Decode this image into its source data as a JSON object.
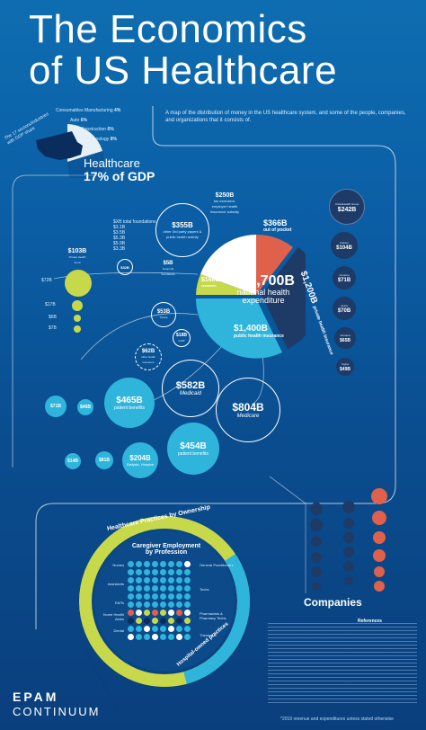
{
  "header": {
    "title_line1": "The Economics",
    "title_line2": "of US Healthcare",
    "subtitle": "A map of the distribution of money in the US healthcare system, and some of the people, companies, and organizations that it consists of."
  },
  "gdp": {
    "title": "Healthcare",
    "percent": "17% of GDP",
    "pie_slices": [
      {
        "label": "Consumables Manufacturing",
        "value": "4%"
      },
      {
        "label": "Auto",
        "value": "6%"
      },
      {
        "label": "Construction",
        "value": "6%"
      },
      {
        "label": "Technology",
        "value": "8%"
      }
    ],
    "curve_label": "The 17 sectors/industries with GDP share"
  },
  "center": {
    "total": "~$3,700B",
    "total_label1": "national health",
    "total_label2": "expenditure",
    "slices": [
      {
        "value": "$605B",
        "label": "other"
      },
      {
        "value": "$366B",
        "label": "out of pocket"
      },
      {
        "value": "$1,200B",
        "label": "private health insurance"
      },
      {
        "value": "$1,400B",
        "label": "public health insurance"
      },
      {
        "value": "$168B",
        "label": "research"
      }
    ],
    "colors": {
      "other": "#ffffff",
      "oop": "#e0614b",
      "private": "#1d3b66",
      "public": "#2fb4dc",
      "research": "#c7d94a"
    }
  },
  "bubbles": {
    "b250": {
      "value": "$250B",
      "label": "tax exclusion, employer health insurance subsidy"
    },
    "b355": {
      "value": "$355B",
      "label": "other 3rd party payers & public health activity"
    },
    "b5": {
      "value": "$5B",
      "label": "Nonprofit foundations"
    },
    "b103": {
      "value": "$103B",
      "label": "Private Health Fund"
    },
    "b53": {
      "value": "$53B",
      "label": "Tricare"
    },
    "b18": {
      "value": "$18B",
      "label": "CHIP"
    },
    "b62": {
      "value": "$62B",
      "label": "other health insurance"
    },
    "b582": {
      "value": "$582B",
      "label": "Medicaid"
    },
    "b804": {
      "value": "$804B",
      "label": "Medicare"
    },
    "b465": {
      "value": "$465B",
      "label": "patient benefits"
    },
    "b454": {
      "value": "$454B",
      "label": "patient benefits"
    },
    "b204": {
      "value": "$204B",
      "label": "Dialysis, Hospice"
    },
    "b71": {
      "value": "$71B",
      "label": ""
    },
    "b46": {
      "value": "$46B",
      "label": ""
    },
    "b14": {
      "value": "$14B",
      "label": ""
    },
    "b81": {
      "value": "$81B",
      "label": ""
    },
    "b72": {
      "value": "$72B",
      "label": ""
    },
    "b17": {
      "value": "$17B",
      "label": ""
    },
    "b6": {
      "value": "$6B",
      "label": ""
    },
    "b7": {
      "value": "$7B",
      "label": ""
    },
    "b32": {
      "value": "$32B",
      "label": ""
    }
  },
  "legend_small": {
    "title": "$XB total foundations",
    "rows": [
      "$3.1B",
      "$3.5B",
      "$5.3B",
      "$5.9B",
      "$3.3B"
    ]
  },
  "companies_right": [
    {
      "value": "$242B",
      "label": "UnitedHealth Group"
    },
    {
      "value": "$104B",
      "label": "Anthem"
    },
    {
      "value": "$71B",
      "label": "Centene"
    },
    {
      "value": "$70B",
      "label": "Aetna"
    },
    {
      "value": "$65B",
      "label": "Humana"
    },
    {
      "value": "$49B",
      "label": "Cigna"
    }
  ],
  "practices": {
    "title": "Healthcare Practices by Ownership",
    "left_label": "Physician-owned practices",
    "right_label": "Hospital-owned practices",
    "caregiver_title1": "Caregiver Employment",
    "caregiver_title2": "by Profession",
    "professions_left": [
      "Nurses",
      "Assistants",
      "EMTs",
      "Home Health Aides",
      "Dental"
    ],
    "professions_right": [
      "General Practitioners",
      "Techs",
      "Pharmacists & Pharmacy Techs",
      "Therapists"
    ]
  },
  "companies_title": "Companies",
  "logo": {
    "line1": "EPAM",
    "line2": "CONTINUUM"
  },
  "footnote": "*2019 revenue and expenditures unless stated otherwise",
  "references_title": "References"
}
